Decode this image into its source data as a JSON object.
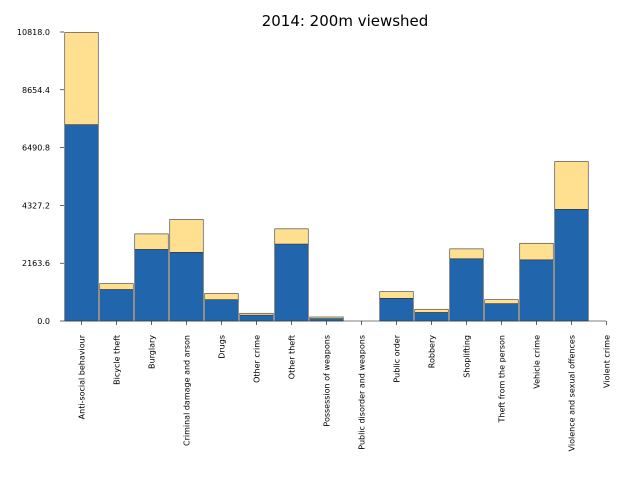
{
  "chart_data": {
    "type": "bar",
    "title": "2014: 200m viewshed",
    "xlabel": "",
    "ylabel": "",
    "ylim": [
      0,
      10818.0
    ],
    "yticks": [
      "0.0",
      "2163.6",
      "4327.2",
      "6490.8",
      "8654.4",
      "10818.0"
    ],
    "grid": false,
    "stacked": true,
    "categories": [
      "Anti-social behaviour",
      "Bicycle theft",
      "Burglary",
      "Criminal damage and arson",
      "Drugs",
      "Other crime",
      "Other theft",
      "Possession of weapons",
      "Public disorder and weapons",
      "Public order",
      "Robbery",
      "Shoplifting",
      "Theft from the person",
      "Vehicle crime",
      "Violence and sexual offences",
      "Violent crime"
    ],
    "series": [
      {
        "color": "#2166ac",
        "values": [
          7350,
          1180,
          2680,
          2570,
          800,
          220,
          2880,
          90,
          0,
          850,
          320,
          2330,
          650,
          2290,
          4180,
          0
        ]
      },
      {
        "color": "#fee090",
        "values": [
          3450,
          220,
          580,
          1230,
          230,
          70,
          570,
          60,
          0,
          250,
          120,
          370,
          150,
          620,
          1790,
          0
        ]
      }
    ]
  }
}
